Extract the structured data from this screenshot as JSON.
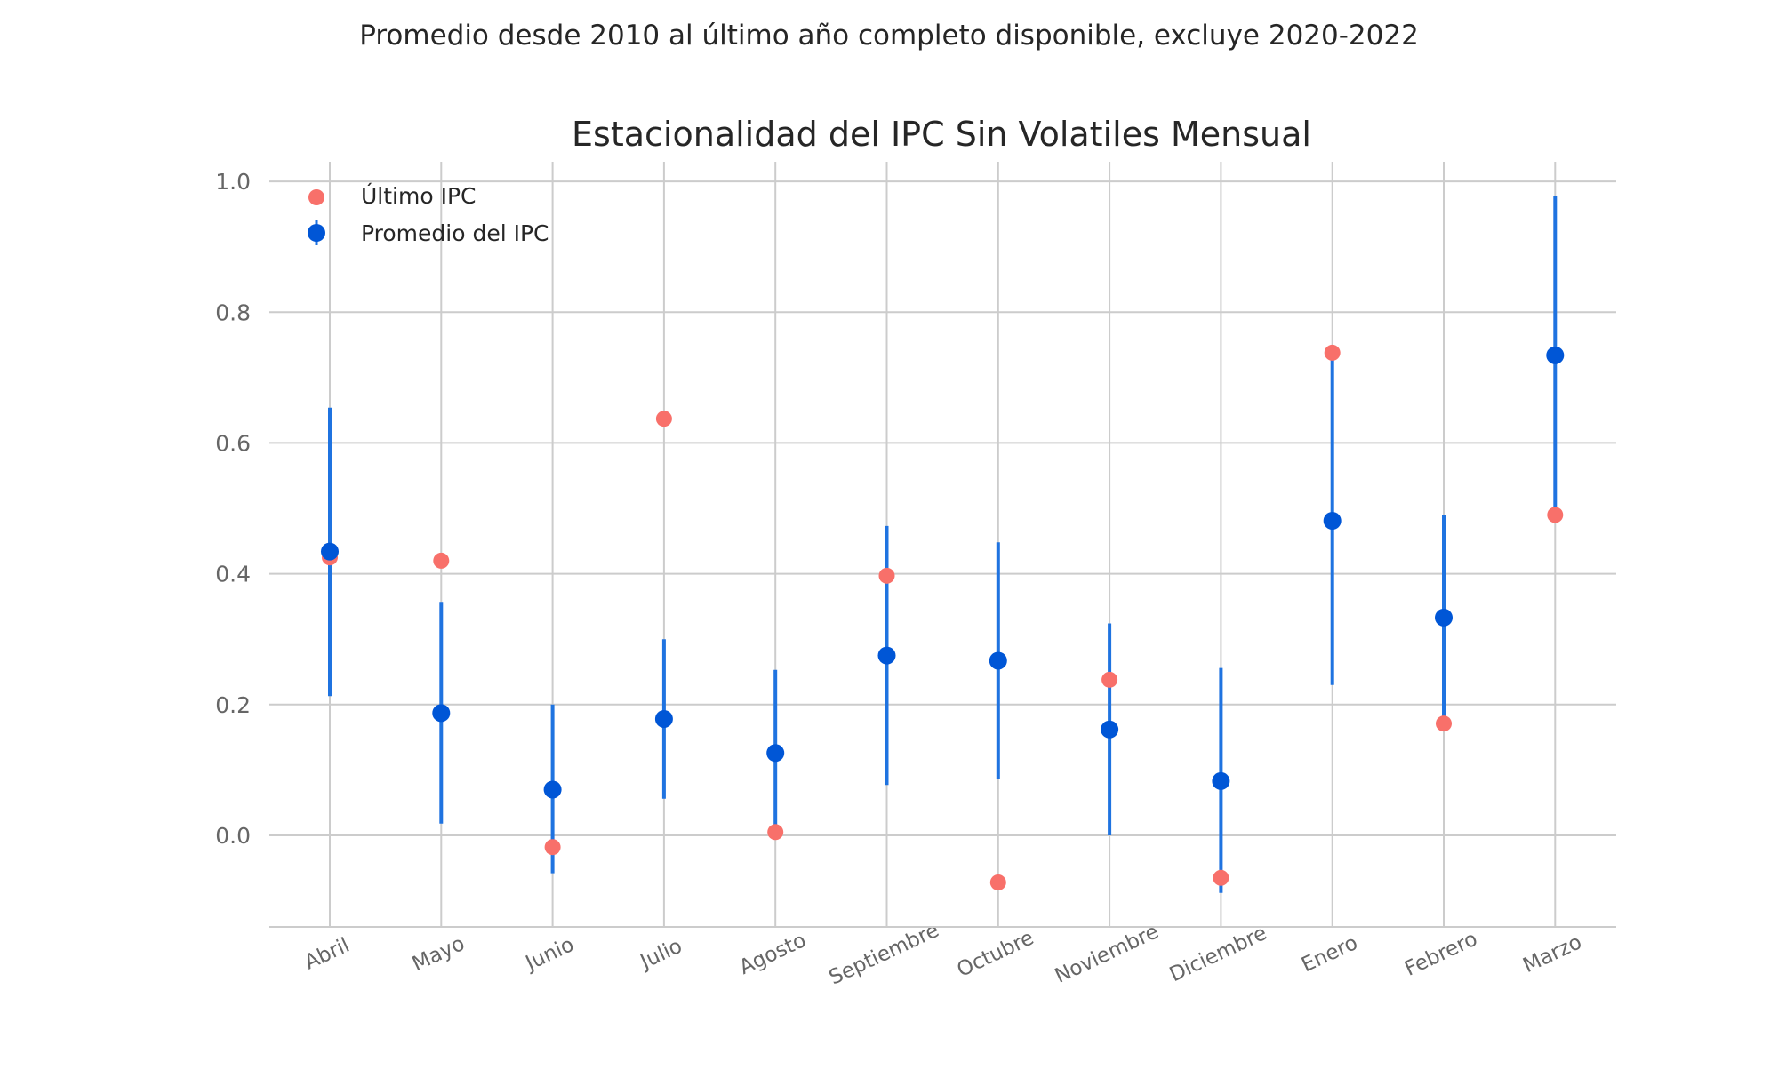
{
  "chart_data": {
    "type": "scatter",
    "suptitle": "Promedio desde 2010 al último año completo disponible, excluye 2020-2022",
    "title": "Estacionalidad del IPC Sin Volatiles Mensual",
    "xlabel": "",
    "ylabel": "",
    "categories": [
      "Abril",
      "Mayo",
      "Junio",
      "Julio",
      "Agosto",
      "Septiembre",
      "Octubre",
      "Noviembre",
      "Diciembre",
      "Enero",
      "Febrero",
      "Marzo"
    ],
    "ylim": [
      -0.14,
      1.03
    ],
    "yticks": [
      0.0,
      0.2,
      0.4,
      0.6,
      0.8,
      1.0
    ],
    "ytick_labels": [
      "0.0",
      "0.2",
      "0.4",
      "0.6",
      "0.8",
      "1.0"
    ],
    "grid": true,
    "legend_position": "top-left",
    "series": [
      {
        "name": "Último IPC",
        "color": "#f8706a",
        "values": [
          0.425,
          0.42,
          -0.018,
          0.637,
          0.005,
          0.397,
          -0.072,
          0.238,
          -0.065,
          0.738,
          0.171,
          0.49
        ]
      },
      {
        "name": "Promedio del IPC",
        "color": "#0056d6",
        "error_color": "#1f73e0",
        "values": [
          0.434,
          0.187,
          0.07,
          0.178,
          0.126,
          0.275,
          0.267,
          0.162,
          0.083,
          0.481,
          0.333,
          0.734
        ],
        "lower": [
          0.213,
          0.018,
          -0.058,
          0.056,
          0.0,
          0.077,
          0.086,
          0.0,
          -0.088,
          0.23,
          0.176,
          0.49
        ],
        "upper": [
          0.654,
          0.357,
          0.2,
          0.3,
          0.253,
          0.473,
          0.448,
          0.324,
          0.256,
          0.732,
          0.49,
          0.978
        ]
      }
    ]
  }
}
